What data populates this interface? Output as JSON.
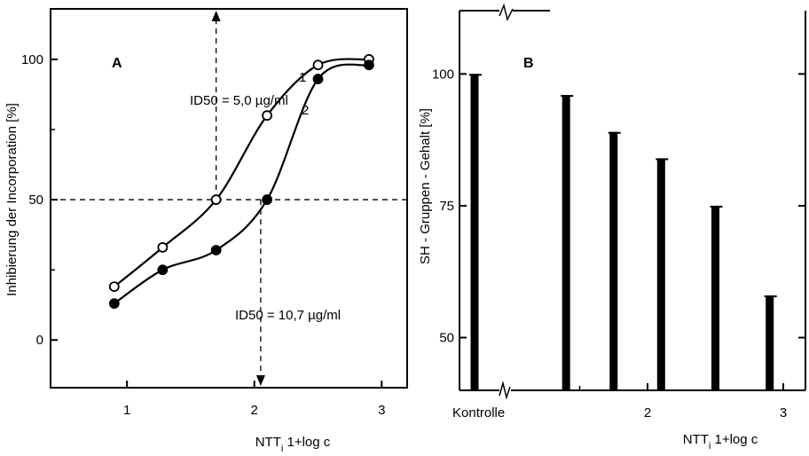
{
  "chart_data": [
    {
      "panel": "A",
      "type": "line",
      "title": "",
      "xlabel": "NTT_i 1+log c",
      "ylabel": "Inhibierung der Incorporation [%]",
      "xlim": [
        0.4,
        3.2
      ],
      "ylim": [
        -17,
        118
      ],
      "x_ticks": [
        1,
        2,
        3
      ],
      "y_ticks": [
        0,
        50,
        100
      ],
      "grid": false,
      "series": [
        {
          "name": "1",
          "marker": "open-circle",
          "points": [
            [
              0.9,
              19
            ],
            [
              1.28,
              33
            ],
            [
              1.7,
              50
            ],
            [
              2.1,
              80
            ],
            [
              2.5,
              98
            ],
            [
              2.9,
              100
            ]
          ]
        },
        {
          "name": "2",
          "marker": "filled-circle",
          "points": [
            [
              0.9,
              13
            ],
            [
              1.28,
              25
            ],
            [
              1.7,
              32
            ],
            [
              2.1,
              50
            ],
            [
              2.5,
              93
            ],
            [
              2.9,
              98
            ]
          ]
        }
      ],
      "reference_lines": {
        "y": 50,
        "x_series1": 1.7,
        "x_series2": 2.05
      },
      "annotations": [
        {
          "label": "A"
        },
        {
          "label": "ID50 = 5,0 µg/ml"
        },
        {
          "label": "ID50 = 10,7 µg/ml"
        }
      ]
    },
    {
      "panel": "B",
      "type": "bar",
      "title": "",
      "xlabel": "NTT_i 1+log c",
      "ylabel": "SH - Gruppen - Gehalt [%]",
      "ylim": [
        40,
        112
      ],
      "y_ticks": [
        50,
        75,
        100
      ],
      "x_ticks": [
        "Kontrolle",
        "2",
        "3"
      ],
      "grid": false,
      "categories": [
        "Kontrolle",
        "1.4",
        "1.75",
        "2.1",
        "2.5",
        "2.9"
      ],
      "values": [
        100,
        96,
        89,
        84,
        75,
        58
      ],
      "annotations": [
        {
          "label": "B"
        }
      ]
    }
  ],
  "labels": {
    "panelA": "A",
    "panelB": "B",
    "curve1": "1",
    "curve2": "2",
    "id50_1": "ID50 = 5,0 µg/ml",
    "id50_2": "ID50 = 10,7 µg/ml",
    "xlabel_prefix": "NTT",
    "xlabel_sub": "i",
    "xlabel_suffix": " 1+log c",
    "ylabelA": "Inhibierung der Incorporation [%]",
    "ylabelB": "SH - Gruppen - Gehalt [%]",
    "kontrolle": "Kontrolle"
  },
  "colors": {
    "ink": "#000000",
    "paper": "#ffffff"
  }
}
